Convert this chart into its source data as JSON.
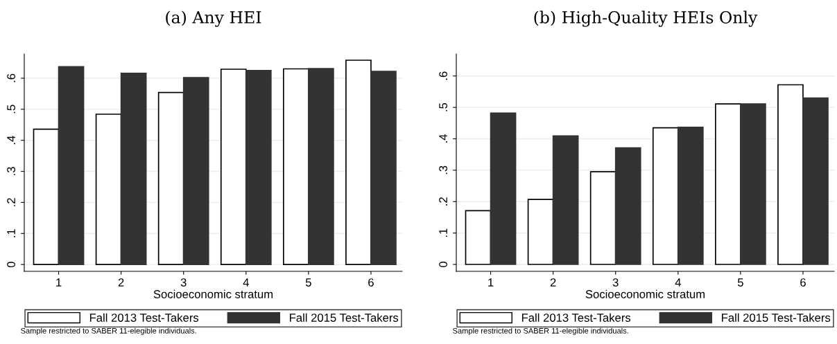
{
  "chart_data": [
    {
      "type": "bar",
      "title": "(a) Any HEI",
      "xlabel": "Socioeconomic stratum",
      "categories": [
        "1",
        "2",
        "3",
        "4",
        "5",
        "6"
      ],
      "series": [
        {
          "name": "Fall 2013 Test-Takers",
          "color": "#ffffff",
          "values": [
            0.436,
            0.484,
            0.554,
            0.629,
            0.63,
            0.658
          ]
        },
        {
          "name": "Fall 2015 Test-Takers",
          "color": "#333333",
          "values": [
            0.637,
            0.616,
            0.602,
            0.625,
            0.631,
            0.622
          ]
        }
      ],
      "ylim": [
        -0.022,
        0.678
      ],
      "yticks": [
        {
          "value": 0,
          "label": "0"
        },
        {
          "value": 0.1,
          "label": ".1"
        },
        {
          "value": 0.2,
          "label": ".2"
        },
        {
          "value": 0.3,
          "label": ".3"
        },
        {
          "value": 0.4,
          "label": ".4"
        },
        {
          "value": 0.5,
          "label": ".5"
        },
        {
          "value": 0.6,
          "label": ".6"
        }
      ],
      "grid": "y",
      "legend": "bottom",
      "annotations": [
        "Sample restricted to SABER 11-elegible individuals."
      ]
    },
    {
      "type": "bar",
      "title": "(b) High-Quality HEIs Only",
      "xlabel": "Socioeconomic stratum",
      "categories": [
        "1",
        "2",
        "3",
        "4",
        "5",
        "6"
      ],
      "series": [
        {
          "name": "Fall 2013 Test-Takers",
          "color": "#ffffff",
          "values": [
            0.171,
            0.207,
            0.295,
            0.435,
            0.511,
            0.572
          ]
        },
        {
          "name": "Fall 2015 Test-Takers",
          "color": "#333333",
          "values": [
            0.482,
            0.409,
            0.371,
            0.437,
            0.511,
            0.53
          ]
        }
      ],
      "ylim": [
        -0.022,
        0.67
      ],
      "yticks": [
        {
          "value": 0,
          "label": "0"
        },
        {
          "value": 0.1,
          "label": ".1"
        },
        {
          "value": 0.2,
          "label": ".2"
        },
        {
          "value": 0.3,
          "label": ".3"
        },
        {
          "value": 0.4,
          "label": ".4"
        },
        {
          "value": 0.5,
          "label": ".5"
        },
        {
          "value": 0.6,
          "label": ".6"
        }
      ],
      "grid": "y",
      "legend": "bottom",
      "annotations": [
        "Sample restricted to SABER 11-elegible individuals."
      ]
    }
  ]
}
